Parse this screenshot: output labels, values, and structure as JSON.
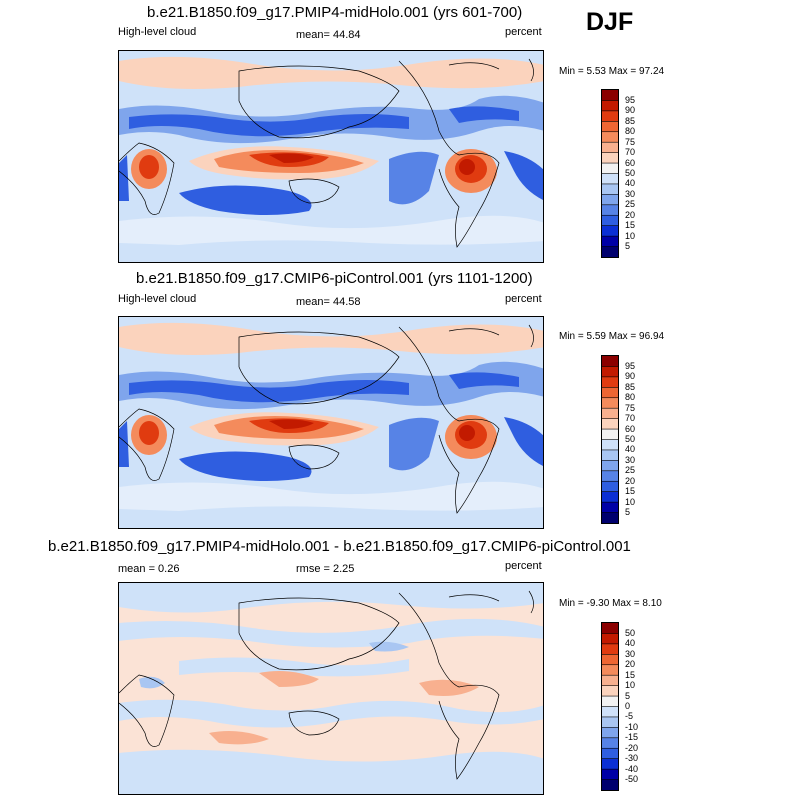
{
  "season": "DJF",
  "panels": [
    {
      "title": "b.e21.B1850.f09_g17.PMIP4-midHolo.001 (yrs 601-700)",
      "left_label": "High-level cloud",
      "center_label": "mean=  44.84",
      "right_label": "percent",
      "minmax": "Min =   5.53 Max =  97.24"
    },
    {
      "title": "b.e21.B1850.f09_g17.CMIP6-piControl.001 (yrs 1101-1200)",
      "left_label": "High-level cloud",
      "center_label": "mean=  44.58",
      "right_label": "percent",
      "minmax": "Min =   5.59 Max =  96.94"
    },
    {
      "title": "b.e21.B1850.f09_g17.PMIP4-midHolo.001 - b.e21.B1850.f09_g17.CMIP6-piControl.001",
      "left_label": "mean =    0.26",
      "center_label": "rmse =    2.25",
      "right_label": "percent",
      "minmax": "Min =  -9.30 Max =   8.10"
    }
  ],
  "chart_data": [
    {
      "type": "heatmap",
      "title": "b.e21.B1850.f09_g17.PMIP4-midHolo.001 (yrs 601-700)",
      "variable": "High-level cloud",
      "units": "percent",
      "mean": 44.84,
      "min": 5.53,
      "max": 97.24,
      "colorbar_levels": [
        "95",
        "90",
        "85",
        "80",
        "75",
        "70",
        "60",
        "50",
        "40",
        "30",
        "25",
        "20",
        "15",
        "10",
        "5"
      ],
      "colorbar_colors": [
        "#8b0000",
        "#c21a00",
        "#e03b10",
        "#ee6633",
        "#f48b5c",
        "#f8b08f",
        "#fbd3bd",
        "#f2f2f2",
        "#cfe1f9",
        "#a9c6f2",
        "#7fa5ec",
        "#5783e6",
        "#2f5ee0",
        "#0b2fd4",
        "#0000a6",
        "#00006e"
      ]
    },
    {
      "type": "heatmap",
      "title": "b.e21.B1850.f09_g17.CMIP6-piControl.001 (yrs 1101-1200)",
      "variable": "High-level cloud",
      "units": "percent",
      "mean": 44.58,
      "min": 5.59,
      "max": 96.94,
      "colorbar_levels": [
        "95",
        "90",
        "85",
        "80",
        "75",
        "70",
        "60",
        "50",
        "40",
        "30",
        "25",
        "20",
        "15",
        "10",
        "5"
      ],
      "colorbar_colors": [
        "#8b0000",
        "#c21a00",
        "#e03b10",
        "#ee6633",
        "#f48b5c",
        "#f8b08f",
        "#fbd3bd",
        "#f2f2f2",
        "#cfe1f9",
        "#a9c6f2",
        "#7fa5ec",
        "#5783e6",
        "#2f5ee0",
        "#0b2fd4",
        "#0000a6",
        "#00006e"
      ]
    },
    {
      "type": "heatmap",
      "title": "b.e21.B1850.f09_g17.PMIP4-midHolo.001 - b.e21.B1850.f09_g17.CMIP6-piControl.001",
      "units": "percent",
      "mean": 0.26,
      "rmse": 2.25,
      "min": -9.3,
      "max": 8.1,
      "colorbar_levels": [
        "50",
        "40",
        "30",
        "20",
        "15",
        "10",
        "5",
        "0",
        "-5",
        "-10",
        "-15",
        "-20",
        "-30",
        "-40",
        "-50"
      ],
      "colorbar_colors": [
        "#8b0000",
        "#c21a00",
        "#e03b10",
        "#ee6633",
        "#f48b5c",
        "#f8b08f",
        "#fbd3bd",
        "#f2f2f2",
        "#cfe1f9",
        "#a9c6f2",
        "#7fa5ec",
        "#5783e6",
        "#2f5ee0",
        "#0b2fd4",
        "#0000a6",
        "#00006e"
      ]
    }
  ]
}
